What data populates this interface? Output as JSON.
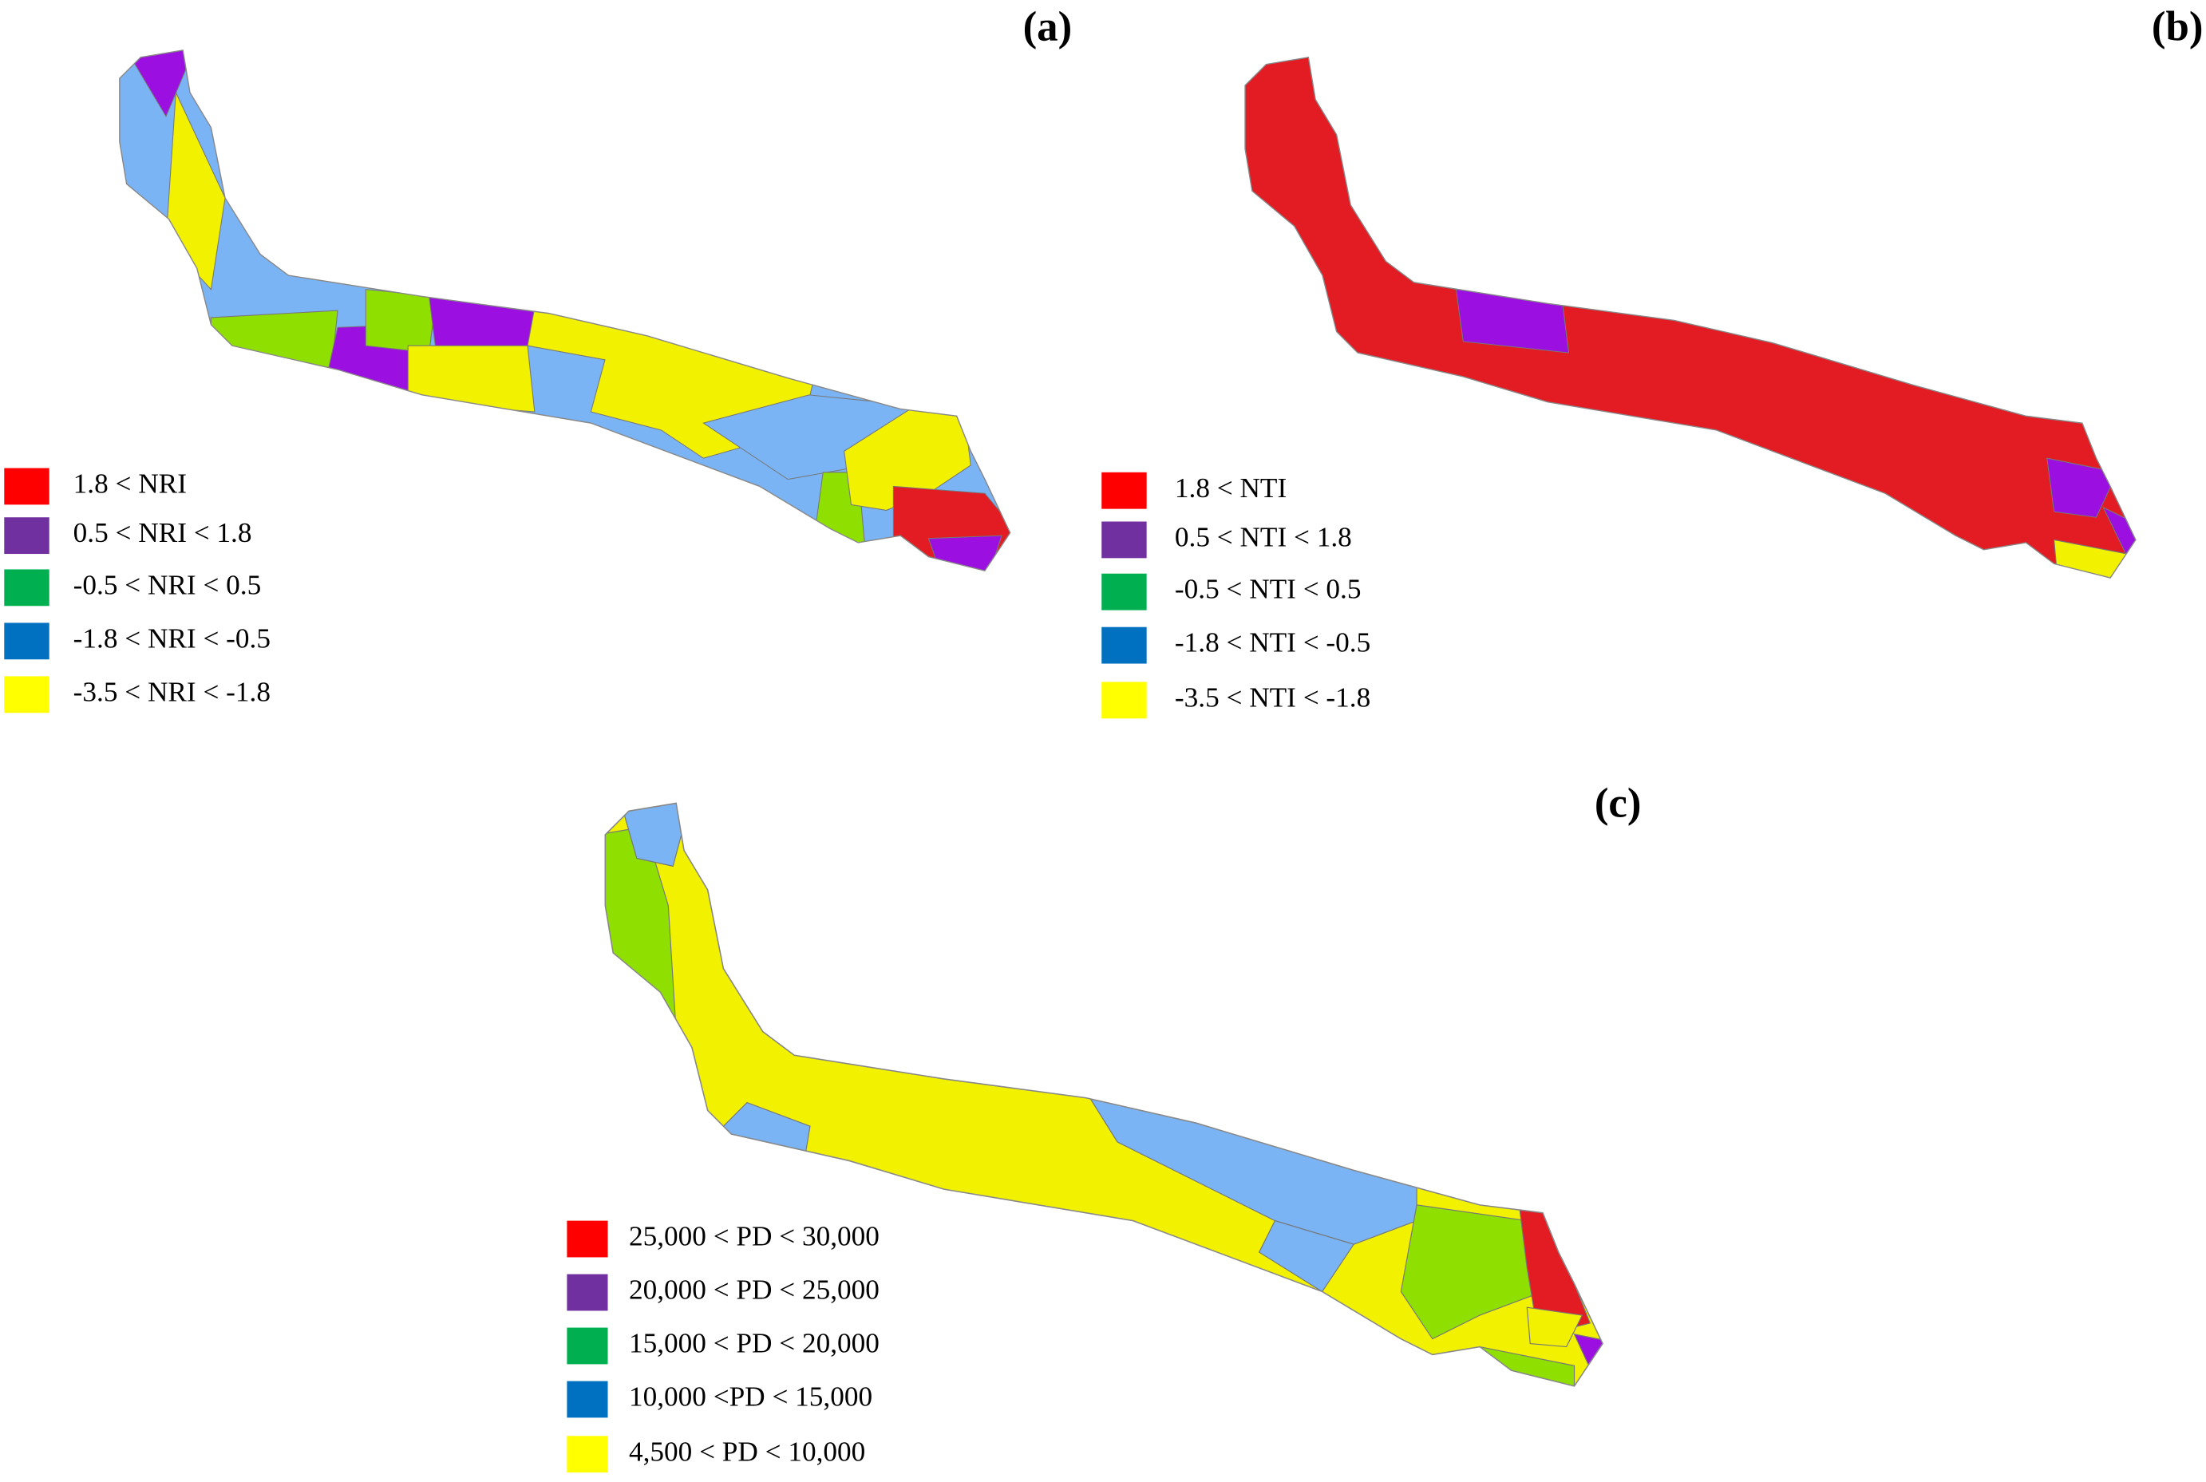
{
  "panels": [
    {
      "label": "(a)",
      "legend": [
        "1.8 < NRI",
        "0.5 < NRI < 1.8",
        "-0.5 < NRI < 0.5",
        "-1.8 < NRI < -0.5",
        "-3.5 < NRI < -1.8"
      ]
    },
    {
      "label": "(b)",
      "legend": [
        "1.8 < NTI",
        "0.5 < NTI < 1.8",
        "-0.5 < NTI < 0.5",
        "-1.8 < NTI < -0.5",
        "-3.5 < NTI < -1.8"
      ]
    },
    {
      "label": "(c)",
      "legend": [
        "25,000 < PD < 30,000",
        "20,000 < PD < 25,000",
        "15,000 < PD < 20,000",
        "10,000 <PD < 15,000",
        "4,500 < PD < 10,000"
      ]
    }
  ]
}
